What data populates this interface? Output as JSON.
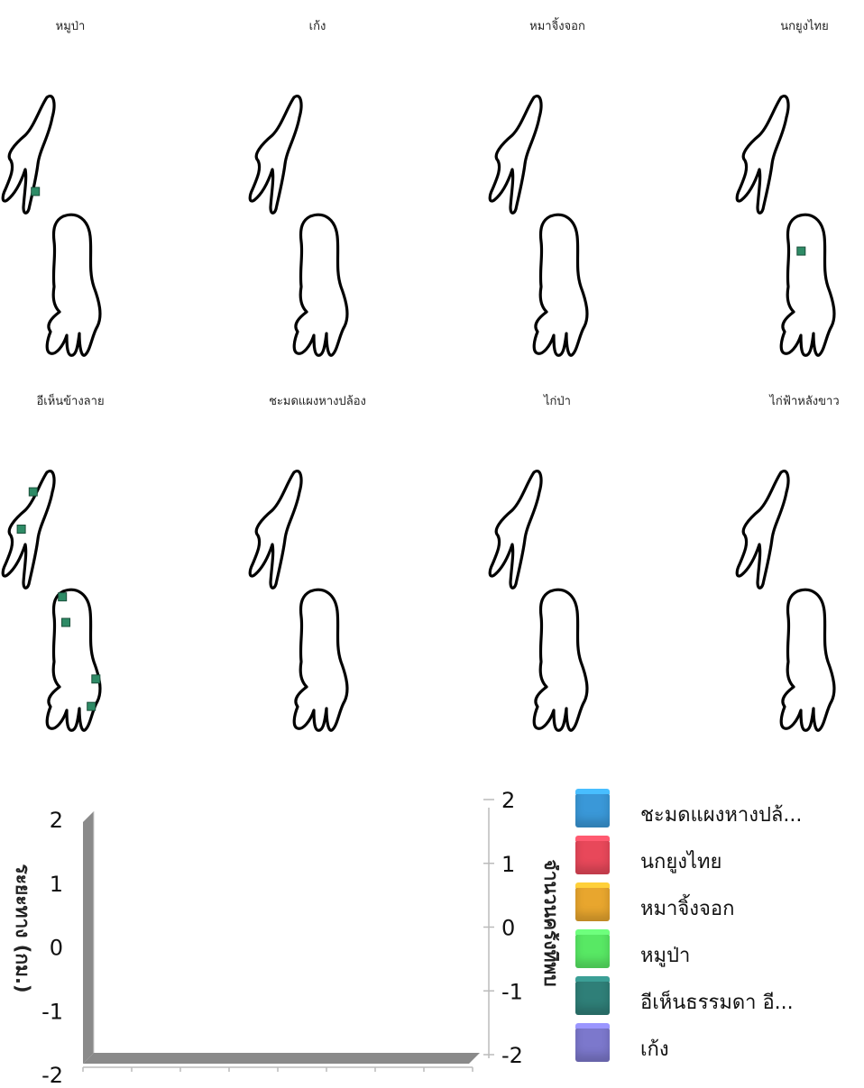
{
  "maps": [
    {
      "title": "หมูป่า",
      "markers": [
        [
          0.62,
          0.16
        ]
      ]
    },
    {
      "title": "เก้ง",
      "markers": []
    },
    {
      "title": "หมาจิ้งจอก",
      "markers": []
    },
    {
      "title": "นกยูงไทย",
      "markers": [
        [
          0.38,
          0.42
        ]
      ]
    },
    {
      "title": "อีเห็นข้างลาย",
      "markers": [
        [
          0.36,
          0.1
        ],
        [
          0.3,
          0.26
        ],
        [
          0.58,
          0.04
        ],
        [
          0.36,
          0.4
        ],
        [
          0.88,
          0.71
        ],
        [
          0.8,
          0.86
        ]
      ]
    },
    {
      "title": "ชะมดแผงหางปล้อง",
      "markers": []
    },
    {
      "title": "ไก่ป่า",
      "markers": []
    },
    {
      "title": "ไก่ฟ้าหลังขาว",
      "markers": []
    }
  ],
  "marker_color": "#2e8b66",
  "chart_data": {
    "type": "bar",
    "title": "",
    "ylabel": "ระยะทาง (กม.)",
    "y2label": "จำนวนครั้งที่พบ",
    "ylim": [
      -2,
      2
    ],
    "y2lim": [
      -2,
      2
    ],
    "yticks": [
      "2",
      "1",
      "0",
      "-1",
      "-2"
    ],
    "y2ticks": [
      "2",
      "1",
      "0",
      "-1",
      "-2"
    ],
    "categories": [],
    "series": [
      {
        "name": "ชะมดแผงหางปล้...",
        "color": "#3a98d8",
        "values": []
      },
      {
        "name": "นกยูงไทย",
        "color": "#e8485a",
        "values": []
      },
      {
        "name": "หมาจิ้งจอก",
        "color": "#e8a62e",
        "values": []
      },
      {
        "name": "หมูป่า",
        "color": "#58e864",
        "values": []
      },
      {
        "name": "อีเห็นธรรมดา อี...",
        "color": "#2f7f78",
        "values": []
      },
      {
        "name": "เก้ง",
        "color": "#7c78cc",
        "values": []
      }
    ],
    "legend_position": "right",
    "grid": false
  }
}
